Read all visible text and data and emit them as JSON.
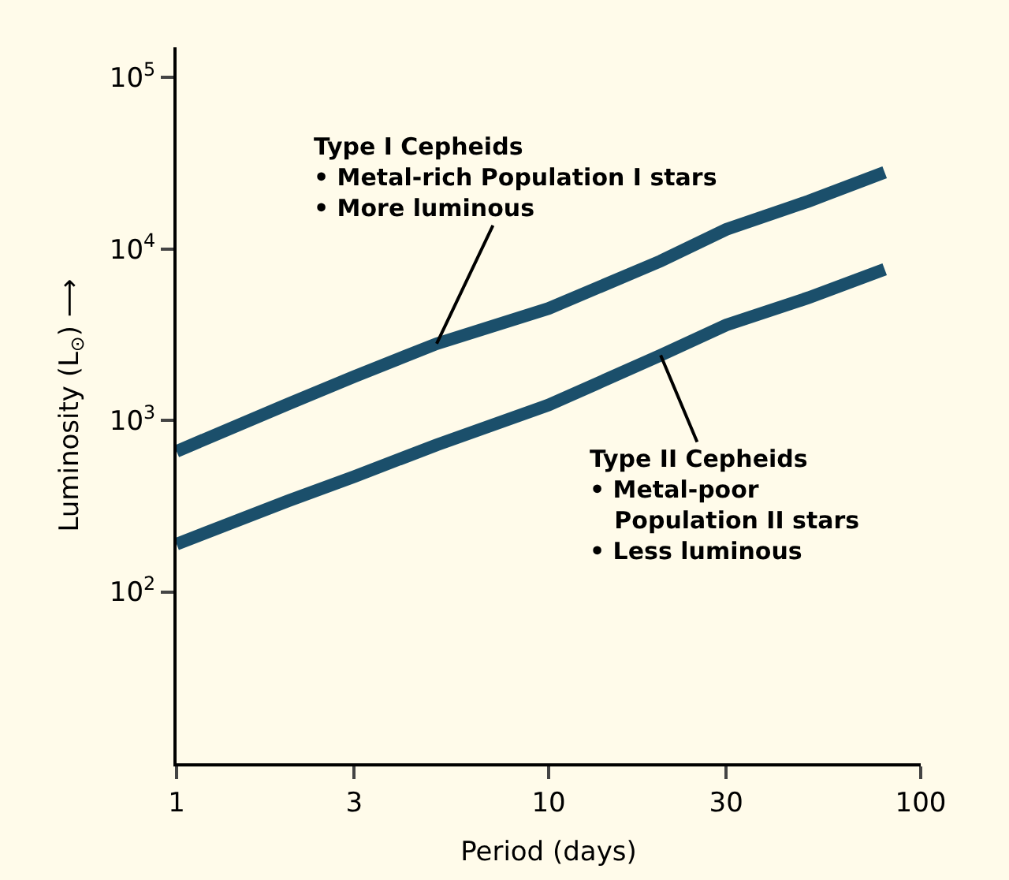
{
  "chart_data": {
    "type": "line",
    "xlabel": "Period (days)",
    "ylabel": "Luminosity (L$_{⊙}$) ⟶",
    "x": [
      1,
      2,
      3,
      5,
      10,
      20,
      30,
      50,
      80
    ],
    "series": [
      {
        "color": "#1b4f6b",
        "values": [
          660,
          1250,
          1800,
          2800,
          4500,
          8500,
          13000,
          19000,
          28000
        ]
      },
      {
        "color": "#1b4f6b",
        "values": [
          190,
          340,
          470,
          720,
          1230,
          2400,
          3600,
          5200,
          7600
        ]
      }
    ],
    "log": "xy",
    "grid": false,
    "marker": "none",
    "line_style": "solid",
    "xlim": [
      1,
      100
    ],
    "xticks": [
      1,
      3,
      10,
      30,
      100
    ],
    "ylim": [
      10,
      150000
    ],
    "yticks": [
      {
        "value": 100,
        "label": "10$^{2}$"
      },
      {
        "value": 1000,
        "label": "10$^{3}$"
      },
      {
        "value": 10000,
        "label": "10$^{4}$"
      },
      {
        "value": 100000,
        "label": "10$^{5}$"
      }
    ],
    "annotations": [
      {
        "text": "Type I Cepheids\n• Metal-rich Population I stars\n• More luminous",
        "x": 5,
        "y": 2800
      },
      {
        "text": "Type II Cepheids\n• Metal-poor\n   Population II stars\n• Less luminous",
        "x": 20,
        "y": 2400
      }
    ]
  }
}
